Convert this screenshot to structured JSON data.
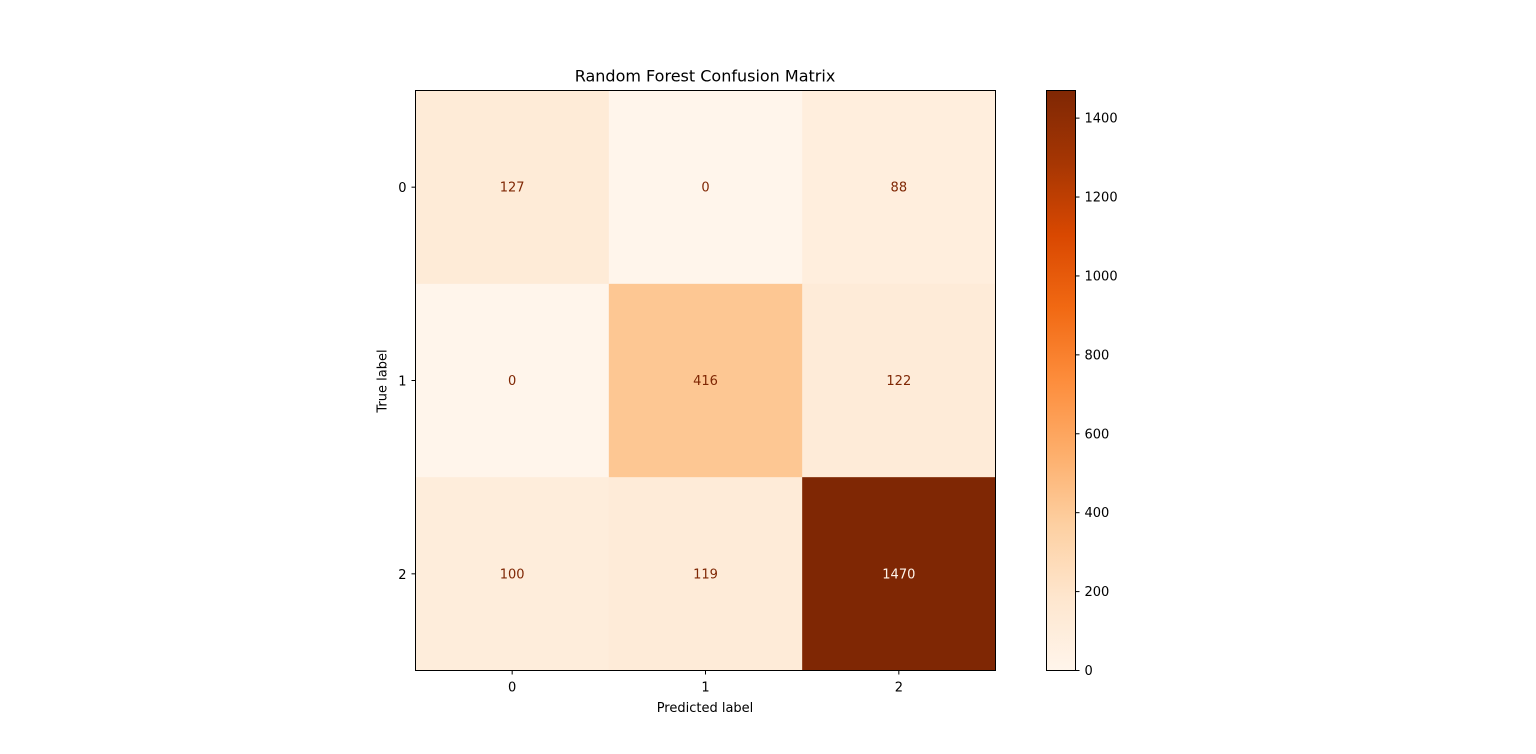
{
  "chart_data": {
    "type": "heatmap",
    "title": "Random Forest Confusion Matrix",
    "xlabel": "Predicted label",
    "ylabel": "True label",
    "x_categories": [
      "0",
      "1",
      "2"
    ],
    "y_categories": [
      "0",
      "1",
      "2"
    ],
    "values": [
      [
        127,
        0,
        88
      ],
      [
        0,
        416,
        122
      ],
      [
        100,
        119,
        1470
      ]
    ],
    "colormap": "Oranges",
    "colorbar": {
      "range": [
        0,
        1470
      ],
      "ticks": [
        0,
        200,
        400,
        600,
        800,
        1000,
        1200,
        1400
      ]
    },
    "colors": {
      "colormap_stops": [
        "#fff5eb",
        "#fee6ce",
        "#fdd0a2",
        "#fdae6b",
        "#fd8d3c",
        "#f16913",
        "#d94801",
        "#a63603",
        "#7f2704"
      ],
      "text_on_light": "#7f2704",
      "text_on_dark": "#fff5eb",
      "axis": "#000000"
    }
  }
}
